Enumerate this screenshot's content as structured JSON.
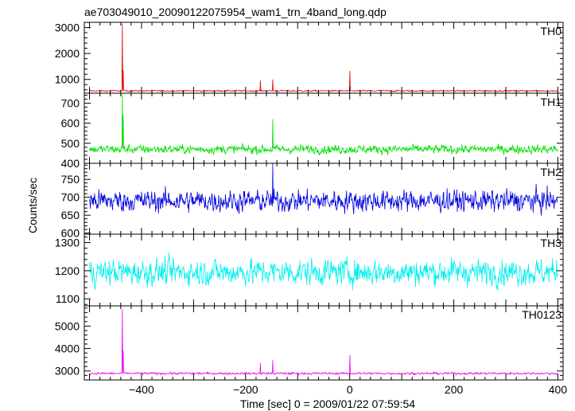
{
  "chart_data": {
    "type": "line",
    "title": "ae703049010_20090122075954_wam1_trn_4band_long.qdp",
    "xlabel": "Time [sec] 0 = 2009/01/22 07:59:54",
    "ylabel": "Counts/sec",
    "xlim": [
      -510,
      410
    ],
    "xticks": [
      -400,
      -200,
      0,
      200,
      400
    ],
    "xtick_labels": [
      "−400",
      "−200",
      "0",
      "200",
      "400"
    ],
    "grid": false,
    "legend": "none",
    "panels": [
      {
        "name": "TH0",
        "color": "#e00000",
        "ylim": [
          470,
          3200
        ],
        "yticks": [
          1000,
          2000,
          3000
        ],
        "yticklabels": [
          "1000",
          "2000",
          "3000"
        ],
        "baseline": 560,
        "noise": 22,
        "spikes": [
          {
            "x": -437,
            "y": 3150
          },
          {
            "x": -435,
            "y": 1350
          },
          {
            "x": -172,
            "y": 960
          },
          {
            "x": -148,
            "y": 1000
          },
          {
            "x": 0,
            "y": 1330
          }
        ]
      },
      {
        "name": "TH1",
        "color": "#00e000",
        "ylim": [
          400,
          750
        ],
        "yticks": [
          400,
          500,
          600,
          700
        ],
        "yticklabels": [
          "400",
          "500",
          "600",
          "700"
        ],
        "baseline": 470,
        "noise": 18,
        "spikes": [
          {
            "x": -437,
            "y": 745
          },
          {
            "x": -435,
            "y": 640
          },
          {
            "x": -148,
            "y": 620
          }
        ]
      },
      {
        "name": "TH2",
        "color": "#0000e0",
        "ylim": [
          597,
          795
        ],
        "yticks": [
          600,
          650,
          700,
          750
        ],
        "yticklabels": [
          "600",
          "650",
          "700",
          "750"
        ],
        "baseline": 690,
        "noise": 25,
        "spikes": [
          {
            "x": -148,
            "y": 795
          }
        ]
      },
      {
        "name": "TH3",
        "color": "#00f0f0",
        "ylim": [
          1075,
          1330
        ],
        "yticks": [
          1100,
          1200,
          1300
        ],
        "yticklabels": [
          "1100",
          "1200",
          "1300"
        ],
        "baseline": 1195,
        "noise": 38,
        "spikes": []
      },
      {
        "name": "TH0123",
        "color": "#f000f0",
        "ylim": [
          2600,
          5900
        ],
        "yticks": [
          3000,
          4000,
          5000
        ],
        "yticklabels": [
          "3000",
          "4000",
          "5000"
        ],
        "baseline": 2890,
        "noise": 40,
        "spikes": [
          {
            "x": -437,
            "y": 5750
          },
          {
            "x": -435,
            "y": 3900
          },
          {
            "x": -172,
            "y": 3350
          },
          {
            "x": -148,
            "y": 3480
          },
          {
            "x": 0,
            "y": 3700
          }
        ]
      }
    ]
  }
}
